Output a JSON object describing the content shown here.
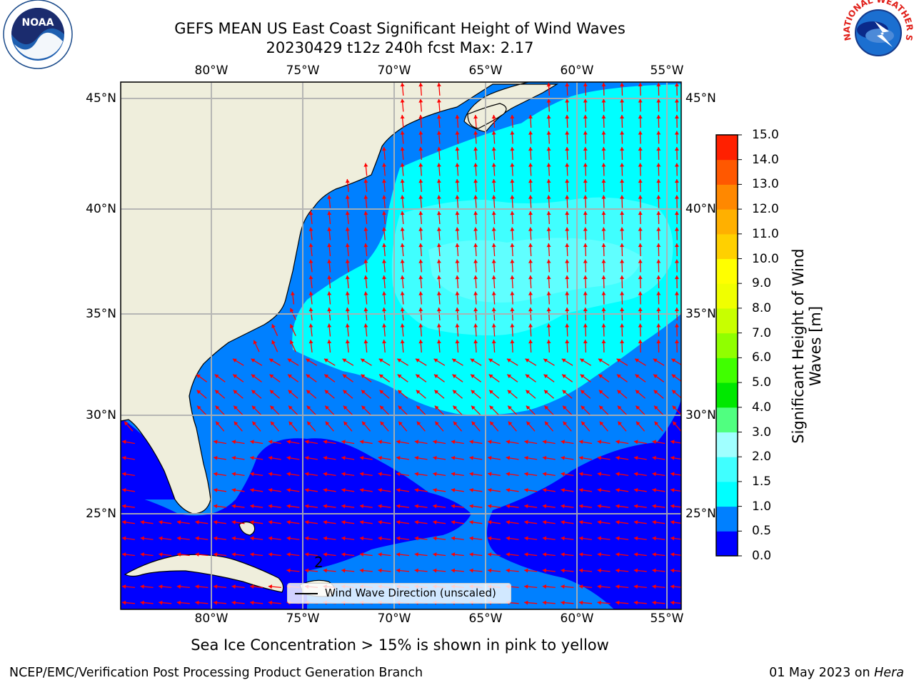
{
  "header": {
    "title_line1": "GEFS MEAN US East Coast Significant Height of Wind Waves",
    "title_line2": "20230429 t12z 240h fcst   Max: 2.17"
  },
  "map": {
    "lon_ticks": [
      "80°W",
      "75°W",
      "70°W",
      "65°W",
      "60°W",
      "55°W"
    ],
    "lat_ticks": [
      "45°N",
      "40°N",
      "35°N",
      "30°N",
      "25°N"
    ],
    "lon_range": [
      -85,
      -54.2
    ],
    "lat_range": [
      20.4,
      46.3
    ],
    "land_color": "#efeedc",
    "arrow_color": "#ff0000",
    "annotation": "2"
  },
  "legend": {
    "label": "Wind Wave Direction (unscaled)"
  },
  "colorbar": {
    "title": "Significant Height of Wind Waves [m]",
    "levels": [
      "0.0",
      "0.5",
      "1.0",
      "1.5",
      "2.0",
      "3.0",
      "4.0",
      "5.0",
      "6.0",
      "7.0",
      "8.0",
      "9.0",
      "10.0",
      "11.0",
      "12.0",
      "13.0",
      "14.0",
      "15.0"
    ],
    "colors": [
      "#0000ff",
      "#0080ff",
      "#00ffff",
      "#40ffff",
      "#a0ffff",
      "#50ff80",
      "#00e800",
      "#40ff00",
      "#90ff00",
      "#c8ff00",
      "#f0ff00",
      "#ffff00",
      "#ffd000",
      "#ffb000",
      "#ff8800",
      "#ff5800",
      "#ff2000"
    ]
  },
  "ice_note": "Sea Ice Concentration > 15% is shown in pink to yellow",
  "footer": {
    "left": "NCEP/EMC/Verification Post Processing Product Generation Branch",
    "right_date": "01 May 2023 on ",
    "right_machine": "Hera"
  },
  "logos": {
    "noaa": {
      "text": "NOAA"
    },
    "nws": {
      "text": "NATIONAL WEATHER SERVICE"
    }
  }
}
